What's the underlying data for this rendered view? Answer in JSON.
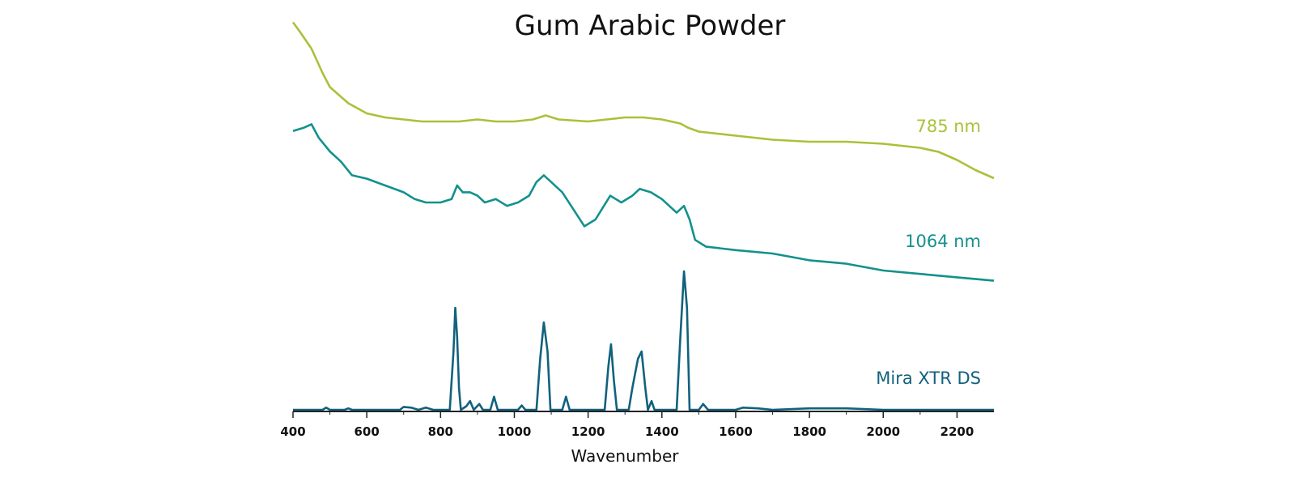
{
  "chart_data": {
    "type": "line",
    "title": "Gum Arabic Powder",
    "xlabel": "Wavenumber",
    "ylabel": "",
    "xlim": [
      400,
      2300
    ],
    "x_ticks": [
      400,
      600,
      800,
      1000,
      1200,
      1400,
      1600,
      1800,
      2000,
      2200
    ],
    "y_axis_shown": false,
    "grid": false,
    "legend": "none",
    "series": [
      {
        "name": "785 nm",
        "color": "#a8c23a",
        "points": [
          [
            400,
            95
          ],
          [
            420,
            90
          ],
          [
            450,
            82
          ],
          [
            480,
            70
          ],
          [
            500,
            63
          ],
          [
            550,
            55
          ],
          [
            600,
            50
          ],
          [
            650,
            48
          ],
          [
            700,
            47
          ],
          [
            750,
            46
          ],
          [
            800,
            46
          ],
          [
            850,
            46
          ],
          [
            900,
            47
          ],
          [
            950,
            46
          ],
          [
            1000,
            46
          ],
          [
            1050,
            47
          ],
          [
            1085,
            49
          ],
          [
            1120,
            47
          ],
          [
            1200,
            46
          ],
          [
            1250,
            47
          ],
          [
            1300,
            48
          ],
          [
            1350,
            48
          ],
          [
            1400,
            47
          ],
          [
            1450,
            45
          ],
          [
            1470,
            43
          ],
          [
            1500,
            41
          ],
          [
            1600,
            39
          ],
          [
            1700,
            37
          ],
          [
            1800,
            36
          ],
          [
            1900,
            36
          ],
          [
            2000,
            35
          ],
          [
            2050,
            34
          ],
          [
            2100,
            33
          ],
          [
            2150,
            31
          ],
          [
            2200,
            27
          ],
          [
            2250,
            22
          ],
          [
            2300,
            18
          ]
        ]
      },
      {
        "name": "1064 nm",
        "color": "#13918d",
        "points": [
          [
            400,
            46
          ],
          [
            430,
            47
          ],
          [
            450,
            48
          ],
          [
            470,
            44
          ],
          [
            500,
            40
          ],
          [
            530,
            37
          ],
          [
            560,
            33
          ],
          [
            600,
            32
          ],
          [
            650,
            30
          ],
          [
            700,
            28
          ],
          [
            730,
            26
          ],
          [
            760,
            25
          ],
          [
            800,
            25
          ],
          [
            830,
            26
          ],
          [
            845,
            30
          ],
          [
            860,
            28
          ],
          [
            880,
            28
          ],
          [
            900,
            27
          ],
          [
            920,
            25
          ],
          [
            950,
            26
          ],
          [
            980,
            24
          ],
          [
            1010,
            25
          ],
          [
            1040,
            27
          ],
          [
            1060,
            31
          ],
          [
            1080,
            33
          ],
          [
            1100,
            31
          ],
          [
            1130,
            28
          ],
          [
            1160,
            23
          ],
          [
            1190,
            18
          ],
          [
            1220,
            20
          ],
          [
            1260,
            27
          ],
          [
            1290,
            25
          ],
          [
            1320,
            27
          ],
          [
            1340,
            29
          ],
          [
            1370,
            28
          ],
          [
            1400,
            26
          ],
          [
            1440,
            22
          ],
          [
            1460,
            24
          ],
          [
            1475,
            20
          ],
          [
            1490,
            14
          ],
          [
            1520,
            12
          ],
          [
            1600,
            11
          ],
          [
            1700,
            10
          ],
          [
            1800,
            8
          ],
          [
            1900,
            7
          ],
          [
            2000,
            5
          ],
          [
            2100,
            4
          ],
          [
            2200,
            3
          ],
          [
            2300,
            2
          ]
        ]
      },
      {
        "name": "Mira XTR DS",
        "color": "#12617e",
        "points": [
          [
            400,
            0
          ],
          [
            480,
            0
          ],
          [
            490,
            0.3
          ],
          [
            500,
            0
          ],
          [
            540,
            0
          ],
          [
            550,
            0.2
          ],
          [
            560,
            0
          ],
          [
            690,
            0
          ],
          [
            700,
            0.4
          ],
          [
            720,
            0.3
          ],
          [
            740,
            0
          ],
          [
            760,
            0.3
          ],
          [
            780,
            0
          ],
          [
            825,
            0
          ],
          [
            835,
            8
          ],
          [
            840,
            14
          ],
          [
            845,
            10
          ],
          [
            850,
            3
          ],
          [
            855,
            0
          ],
          [
            870,
            0.5
          ],
          [
            880,
            1.2
          ],
          [
            890,
            0
          ],
          [
            905,
            0.8
          ],
          [
            915,
            0
          ],
          [
            935,
            0
          ],
          [
            945,
            1.8
          ],
          [
            955,
            0
          ],
          [
            1010,
            0
          ],
          [
            1020,
            0.6
          ],
          [
            1030,
            0
          ],
          [
            1060,
            0
          ],
          [
            1070,
            7
          ],
          [
            1080,
            12
          ],
          [
            1090,
            8
          ],
          [
            1098,
            0
          ],
          [
            1130,
            0
          ],
          [
            1140,
            1.8
          ],
          [
            1150,
            0
          ],
          [
            1245,
            0
          ],
          [
            1255,
            6
          ],
          [
            1262,
            9
          ],
          [
            1270,
            4
          ],
          [
            1278,
            0
          ],
          [
            1310,
            0
          ],
          [
            1320,
            3
          ],
          [
            1335,
            7
          ],
          [
            1345,
            8
          ],
          [
            1355,
            3
          ],
          [
            1362,
            0
          ],
          [
            1372,
            1.2
          ],
          [
            1380,
            0
          ],
          [
            1440,
            0
          ],
          [
            1450,
            10
          ],
          [
            1460,
            19
          ],
          [
            1468,
            14
          ],
          [
            1475,
            0
          ],
          [
            1500,
            0
          ],
          [
            1512,
            0.8
          ],
          [
            1525,
            0
          ],
          [
            1600,
            0
          ],
          [
            1620,
            0.3
          ],
          [
            1660,
            0.2
          ],
          [
            1700,
            0
          ],
          [
            1800,
            0.2
          ],
          [
            1900,
            0.2
          ],
          [
            2000,
            0
          ],
          [
            2300,
            0
          ]
        ]
      }
    ]
  }
}
